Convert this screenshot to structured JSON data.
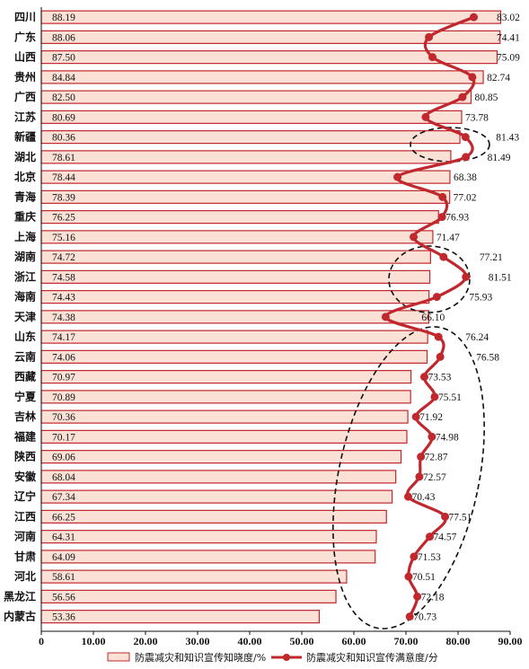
{
  "chart_data": {
    "type": "bar",
    "orientation": "horizontal",
    "categories": [
      "四川",
      "广东",
      "山西",
      "贵州",
      "广西",
      "江苏",
      "新疆",
      "湖北",
      "北京",
      "青海",
      "重庆",
      "上海",
      "湖南",
      "浙江",
      "海南",
      "天津",
      "山东",
      "云南",
      "西藏",
      "宁夏",
      "吉林",
      "福建",
      "陕西",
      "安徽",
      "辽宁",
      "江西",
      "河南",
      "甘肃",
      "河北",
      "黑龙江",
      "内蒙古"
    ],
    "series": [
      {
        "name": "防震减灾和知识宣传知晓度/%",
        "kind": "bar",
        "color": "#c0282d",
        "fill": "#fbe0d6",
        "values": [
          88.19,
          88.06,
          87.5,
          84.84,
          82.5,
          80.69,
          80.36,
          78.61,
          78.44,
          78.39,
          76.25,
          75.16,
          74.72,
          74.58,
          74.43,
          74.38,
          74.17,
          74.06,
          70.97,
          70.89,
          70.36,
          70.17,
          69.06,
          68.04,
          67.34,
          66.25,
          64.31,
          64.09,
          58.61,
          56.56,
          53.36
        ],
        "labels": [
          "88.19",
          "88.06",
          "87.50",
          "84.84",
          "82.50",
          "80.69",
          "80.36",
          "78.61",
          "78.44",
          "78.39",
          "76.25",
          "75.16",
          "74.72",
          "74.58",
          "74.43",
          "74.38",
          "74.17",
          "74.06",
          "70.97",
          "70.89",
          "70.36",
          "70.17",
          "69.06",
          "68.04",
          "67.34",
          "66.25",
          "64.31",
          "64.09",
          "58.61",
          "56.56",
          "53.36"
        ]
      },
      {
        "name": "防震减灾和知识宣传满意度/分",
        "kind": "line",
        "color": "#c0282d",
        "values": [
          83.02,
          74.41,
          75.09,
          82.74,
          80.85,
          73.78,
          81.43,
          81.49,
          68.38,
          77.02,
          76.93,
          71.47,
          77.21,
          81.51,
          75.93,
          66.1,
          76.24,
          76.58,
          73.53,
          75.51,
          71.92,
          74.98,
          72.87,
          72.57,
          70.43,
          77.51,
          74.57,
          71.53,
          70.51,
          72.18,
          70.73
        ],
        "labels": [
          "83.02",
          "74.41",
          "75.09",
          "82.74",
          "80.85",
          "73.78",
          "81.43",
          "81.49",
          "68.38",
          "77.02",
          "76.93",
          "71.47",
          "77.21",
          "81.51",
          "75.93",
          "66.10",
          "76.24",
          "76.58",
          "73.53",
          "75.51",
          "71.92",
          "74.98",
          "72.87",
          "72.57",
          "70.43",
          "77.51",
          "74.57",
          "71.53",
          "70.51",
          "72.18",
          "70.73"
        ]
      }
    ],
    "x_ticks": [
      "0",
      "10.00",
      "20.00",
      "30.00",
      "40.00",
      "50.00",
      "60.00",
      "70.00",
      "80.00",
      "90.00"
    ],
    "xlim": [
      0,
      90
    ],
    "grid": false,
    "legend_position": "bottom",
    "annotations": "dashed ellipses around 新疆–湖北, 湖南–海南, and 天津–内蒙古"
  }
}
